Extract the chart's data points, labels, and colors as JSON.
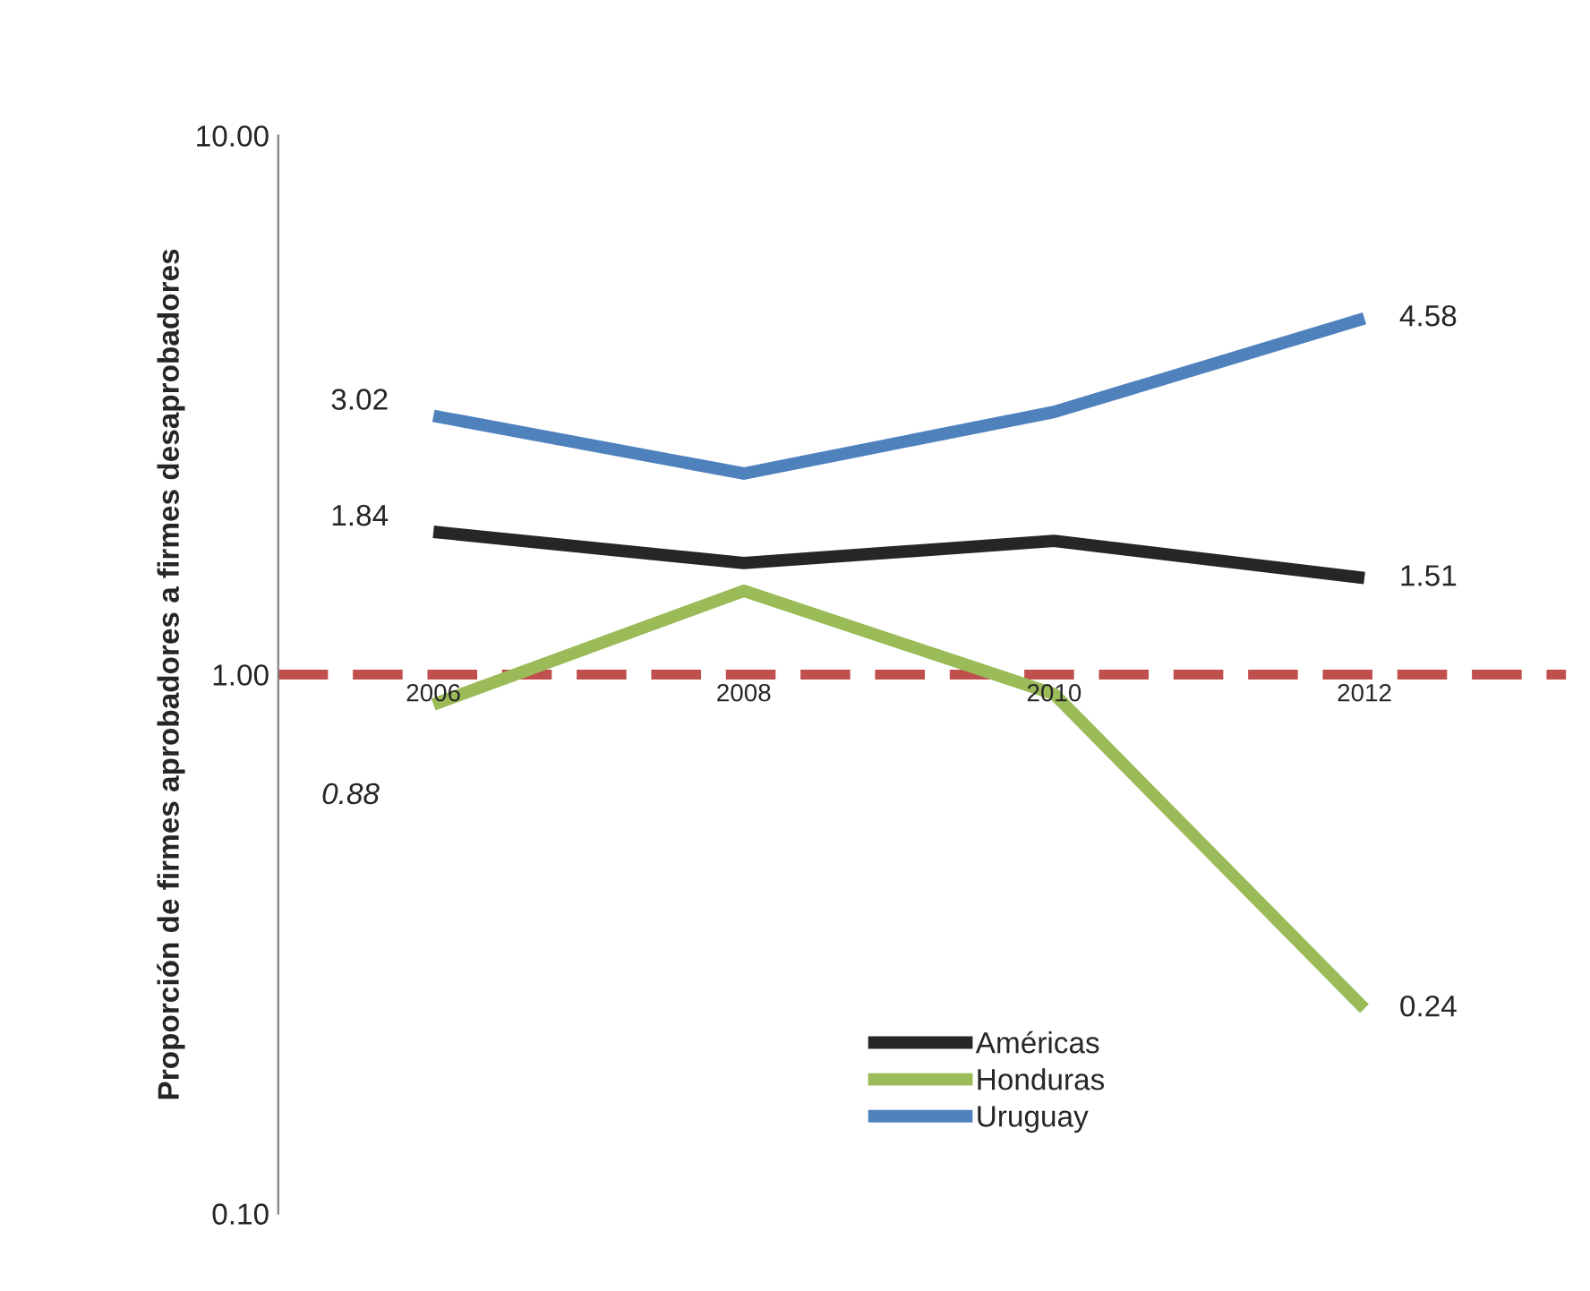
{
  "chart_data": {
    "type": "line",
    "ylabel": "Proporción de firmes aprobadores a firmes desaprobadores",
    "categories": [
      "2006",
      "2008",
      "2010",
      "2012"
    ],
    "series": [
      {
        "name": "Américas",
        "color": "#262626",
        "values": [
          1.84,
          1.61,
          1.77,
          1.51
        ],
        "value_labels": [
          "1.84",
          null,
          null,
          "1.51"
        ]
      },
      {
        "name": "Honduras",
        "color": "#9bbb59",
        "values": [
          0.88,
          1.43,
          0.92,
          0.24
        ],
        "value_labels": [
          "0.88",
          null,
          null,
          "0.24"
        ]
      },
      {
        "name": "Uruguay",
        "color": "#4f81bd",
        "values": [
          3.02,
          2.36,
          3.07,
          4.58
        ],
        "value_labels": [
          "3.02",
          null,
          null,
          "4.58"
        ]
      }
    ],
    "log": "y",
    "ylim": [
      0.1,
      10
    ],
    "yticks": [
      {
        "value": 0.1,
        "label": "0.10"
      },
      {
        "value": 1,
        "label": "1.00"
      },
      {
        "value": 10,
        "label": "10.00"
      }
    ],
    "ref_lines": [
      {
        "axis": "y",
        "value": 1,
        "color": "#c0504d",
        "line_style": "dashed"
      }
    ],
    "grid": false,
    "legend": "bottom",
    "marker": "none",
    "line_style": "solid"
  }
}
